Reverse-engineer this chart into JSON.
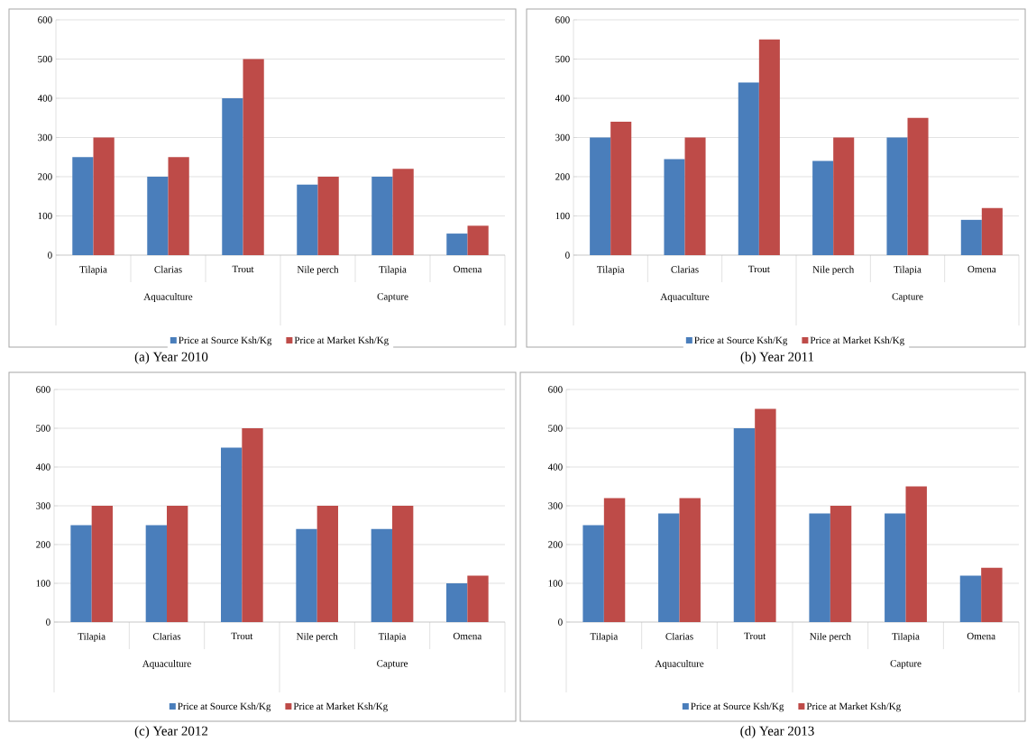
{
  "chart_data": [
    {
      "type": "bar",
      "title": "(a) Year 2010",
      "categories": [
        "Tilapia",
        "Clarias",
        "Trout",
        "Nile perch",
        "Tilapia",
        "Omena"
      ],
      "annotations": [
        "Aquaculture",
        "Capture"
      ],
      "series": [
        {
          "name": "Price at Source Ksh/Kg",
          "color": "#4a7ebb",
          "values": [
            250,
            200,
            400,
            180,
            200,
            55
          ]
        },
        {
          "name": "Price at Market Ksh/Kg",
          "color": "#be4b48",
          "values": [
            300,
            250,
            500,
            200,
            220,
            75
          ]
        }
      ],
      "ylim": [
        0,
        600
      ],
      "yticks": [
        0,
        100,
        200,
        300,
        400,
        500,
        600
      ],
      "grid": "y",
      "legend": "bottom"
    },
    {
      "type": "bar",
      "title": "(b) Year 2011",
      "categories": [
        "Tilapia",
        "Clarias",
        "Trout",
        "Nile perch",
        "Tilapia",
        "Omena"
      ],
      "annotations": [
        "Aquaculture",
        "Capture"
      ],
      "series": [
        {
          "name": "Price at Source Ksh/Kg",
          "color": "#4a7ebb",
          "values": [
            300,
            245,
            440,
            240,
            300,
            90
          ]
        },
        {
          "name": "Price at Market Ksh/Kg",
          "color": "#be4b48",
          "values": [
            340,
            300,
            550,
            300,
            350,
            120
          ]
        }
      ],
      "ylim": [
        0,
        600
      ],
      "yticks": [
        0,
        100,
        200,
        300,
        400,
        500,
        600
      ],
      "grid": "y",
      "legend": "bottom"
    },
    {
      "type": "bar",
      "title": "(c) Year 2012",
      "categories": [
        "Tilapia",
        "Clarias",
        "Trout",
        "Nile perch",
        "Tilapia",
        "Omena"
      ],
      "annotations": [
        "Aquaculture",
        "Capture"
      ],
      "series": [
        {
          "name": "Price at Source Ksh/Kg",
          "color": "#4a7ebb",
          "values": [
            250,
            250,
            450,
            240,
            240,
            100
          ]
        },
        {
          "name": "Price at Market Ksh/Kg",
          "color": "#be4b48",
          "values": [
            300,
            300,
            500,
            300,
            300,
            120
          ]
        }
      ],
      "ylim": [
        0,
        600
      ],
      "yticks": [
        0,
        100,
        200,
        300,
        400,
        500,
        600
      ],
      "grid": "y",
      "legend": "bottom"
    },
    {
      "type": "bar",
      "title": "(d) Year 2013",
      "categories": [
        "Tilapia",
        "Clarias",
        "Trout",
        "Nile perch",
        "Tilapia",
        "Omena"
      ],
      "annotations": [
        "Aquaculture",
        "Capture"
      ],
      "series": [
        {
          "name": "Price at Source Ksh/Kg",
          "color": "#4a7ebb",
          "values": [
            250,
            280,
            500,
            280,
            280,
            120
          ]
        },
        {
          "name": "Price at Market Ksh/Kg",
          "color": "#be4b48",
          "values": [
            320,
            320,
            550,
            300,
            350,
            140
          ]
        }
      ],
      "ylim": [
        0,
        600
      ],
      "yticks": [
        0,
        100,
        200,
        300,
        400,
        500,
        600
      ],
      "grid": "y",
      "legend": "bottom"
    }
  ]
}
